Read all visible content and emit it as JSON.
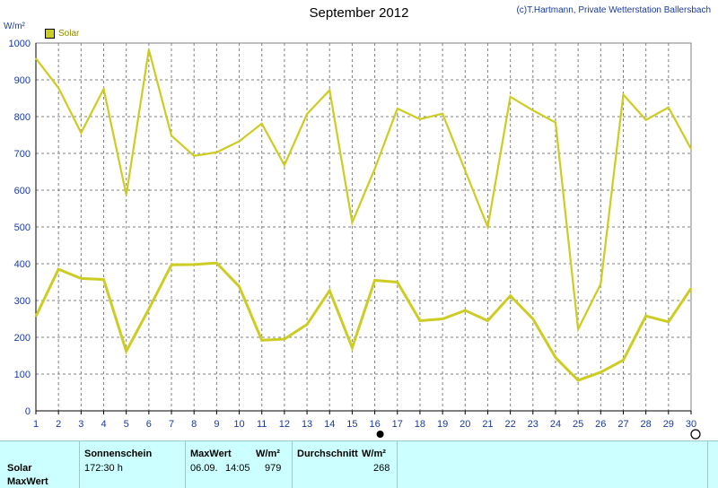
{
  "title": "September 2012",
  "copyright": "(c)T.Hartmann, Private Wetterstation Ballersbach",
  "unit_label": "W/m²",
  "legend": {
    "label": "Solar",
    "color": "#cccc22"
  },
  "chart_data": {
    "type": "line",
    "title": "September 2012",
    "ylabel": "W/m²",
    "ylim": [
      0,
      1000
    ],
    "yticks": [
      0,
      100,
      200,
      300,
      400,
      500,
      600,
      700,
      800,
      900,
      1000
    ],
    "x": [
      1,
      2,
      3,
      4,
      5,
      6,
      7,
      8,
      9,
      10,
      11,
      12,
      13,
      14,
      15,
      16,
      17,
      18,
      19,
      20,
      21,
      22,
      23,
      24,
      25,
      26,
      27,
      28,
      29,
      30
    ],
    "xlim": [
      1,
      30
    ],
    "grid": true,
    "series": [
      {
        "name": "Solar",
        "role": "max",
        "color": "#cccc22",
        "values": [
          958,
          878,
          756,
          875,
          587,
          982,
          748,
          693,
          703,
          733,
          781,
          668,
          807,
          872,
          512,
          658,
          822,
          793,
          808,
          653,
          500,
          854,
          817,
          784,
          222,
          345,
          860,
          791,
          825,
          712
        ]
      },
      {
        "name": "Solar",
        "role": "average",
        "color": "#cccc22",
        "values": [
          257,
          385,
          360,
          357,
          162,
          277,
          397,
          398,
          402,
          338,
          192,
          195,
          235,
          327,
          172,
          355,
          350,
          245,
          250,
          273,
          245,
          313,
          250,
          145,
          83,
          105,
          138,
          258,
          242,
          333
        ]
      }
    ]
  },
  "stats": {
    "row_labels": [
      "Solar",
      "MaxWert"
    ],
    "sunshine": {
      "header": "Sonnenschein",
      "value": "172:30 h"
    },
    "maxwert": {
      "header": "MaxWert",
      "unit": "W/m²",
      "date": "06.09.",
      "time": "14:05",
      "value": "979"
    },
    "average": {
      "header": "Durchschnitt",
      "unit": "W/m²",
      "value": "268"
    }
  }
}
